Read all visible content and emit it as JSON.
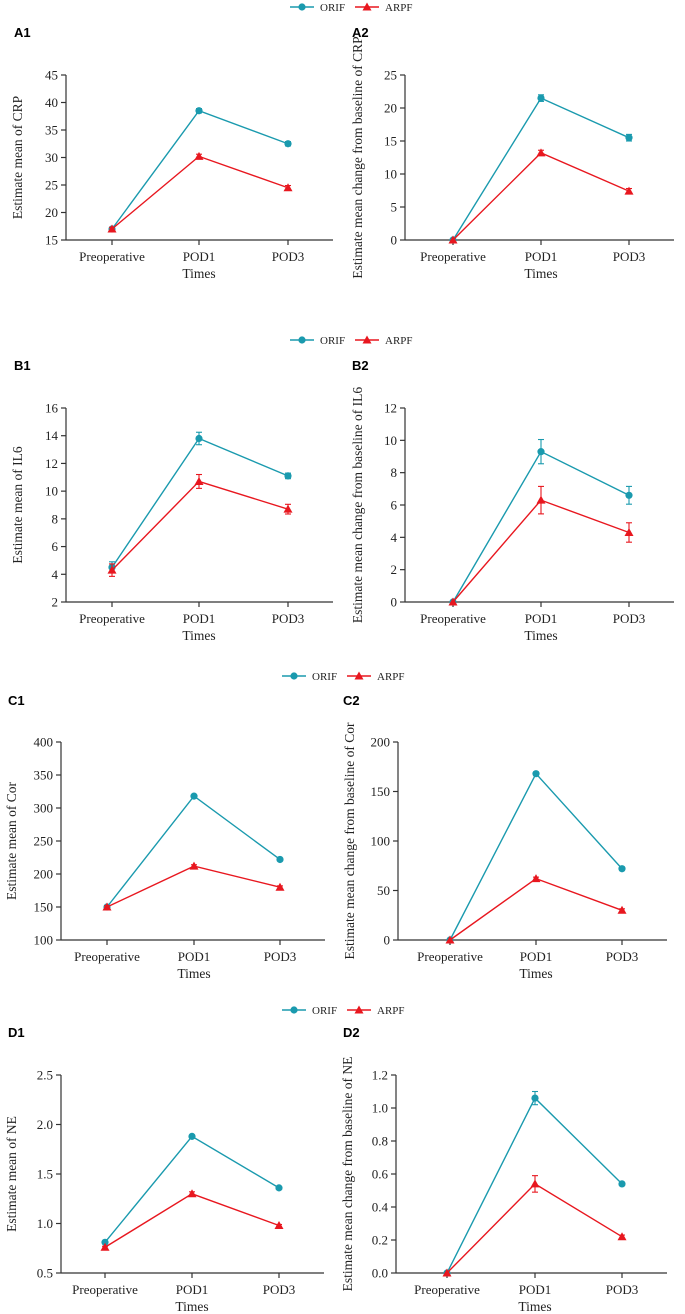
{
  "legend": {
    "series": [
      {
        "name": "ORIF",
        "color": "#1a9aae",
        "marker": "circle"
      },
      {
        "name": "ARPF",
        "color": "#e8171f",
        "marker": "triangle"
      }
    ]
  },
  "chart_data": [
    {
      "type": "line",
      "panel": "A1",
      "xlabel": "Times",
      "ylabel": "Estimate mean of CRP",
      "categories": [
        "Preoperative",
        "POD1",
        "POD3"
      ],
      "ylim": [
        15,
        45
      ],
      "yticks": [
        "15",
        "20",
        "25",
        "30",
        "35",
        "40",
        "45"
      ],
      "ytick_values": [
        15,
        20,
        25,
        30,
        35,
        40,
        45
      ],
      "series": [
        {
          "name": "ORIF",
          "values": [
            17.0,
            38.5,
            32.5
          ],
          "errors": [
            0.3,
            0.4,
            0.4
          ]
        },
        {
          "name": "ARPF",
          "values": [
            17.0,
            30.2,
            24.5
          ],
          "errors": [
            0.3,
            0.4,
            0.4
          ]
        }
      ]
    },
    {
      "type": "line",
      "panel": "A2",
      "xlabel": "Times",
      "ylabel": "Estimate mean change from baseline of CRP",
      "categories": [
        "Preoperative",
        "POD1",
        "POD3"
      ],
      "ylim": [
        0,
        25
      ],
      "yticks": [
        "0",
        "5",
        "10",
        "15",
        "20",
        "25"
      ],
      "ytick_values": [
        0,
        5,
        10,
        15,
        20,
        25
      ],
      "series": [
        {
          "name": "ORIF",
          "values": [
            0,
            21.5,
            15.5
          ],
          "errors": [
            0,
            0.5,
            0.5
          ]
        },
        {
          "name": "ARPF",
          "values": [
            0,
            13.2,
            7.4
          ],
          "errors": [
            0,
            0.4,
            0.4
          ]
        }
      ]
    },
    {
      "type": "line",
      "panel": "B1",
      "xlabel": "Times",
      "ylabel": "Estimate mean of IL6",
      "categories": [
        "Preoperative",
        "POD1",
        "POD3"
      ],
      "ylim": [
        2,
        16
      ],
      "yticks": [
        "2",
        "4",
        "6",
        "8",
        "10",
        "12",
        "14",
        "16"
      ],
      "ytick_values": [
        2,
        4,
        6,
        8,
        10,
        12,
        14,
        16
      ],
      "series": [
        {
          "name": "ORIF",
          "values": [
            4.5,
            13.8,
            11.1
          ],
          "errors": [
            0.4,
            0.45,
            0.2
          ]
        },
        {
          "name": "ARPF",
          "values": [
            4.3,
            10.7,
            8.7
          ],
          "errors": [
            0.45,
            0.5,
            0.35
          ]
        }
      ]
    },
    {
      "type": "line",
      "panel": "B2",
      "xlabel": "Times",
      "ylabel": "Estimate mean change from baseline of IL6",
      "categories": [
        "Preoperative",
        "POD1",
        "POD3"
      ],
      "ylim": [
        0,
        12
      ],
      "yticks": [
        "0",
        "2",
        "4",
        "6",
        "8",
        "10",
        "12"
      ],
      "ytick_values": [
        0,
        2,
        4,
        6,
        8,
        10,
        12
      ],
      "series": [
        {
          "name": "ORIF",
          "values": [
            0,
            9.3,
            6.6
          ],
          "errors": [
            0,
            0.75,
            0.55
          ]
        },
        {
          "name": "ARPF",
          "values": [
            0,
            6.3,
            4.3
          ],
          "errors": [
            0,
            0.85,
            0.6
          ]
        }
      ]
    },
    {
      "type": "line",
      "panel": "C1",
      "xlabel": "Times",
      "ylabel": "Estimate mean of Cor",
      "categories": [
        "Preoperative",
        "POD1",
        "POD3"
      ],
      "ylim": [
        100,
        400
      ],
      "yticks": [
        "100",
        "150",
        "200",
        "250",
        "300",
        "350",
        "400"
      ],
      "ytick_values": [
        100,
        150,
        200,
        250,
        300,
        350,
        400
      ],
      "series": [
        {
          "name": "ORIF",
          "values": [
            150,
            318,
            222
          ],
          "errors": [
            2,
            2,
            2
          ]
        },
        {
          "name": "ARPF",
          "values": [
            150,
            212,
            180
          ],
          "errors": [
            2,
            2,
            2
          ]
        }
      ]
    },
    {
      "type": "line",
      "panel": "C2",
      "xlabel": "Times",
      "ylabel": "Estimate mean change from baseline of Cor",
      "categories": [
        "Preoperative",
        "POD1",
        "POD3"
      ],
      "ylim": [
        0,
        200
      ],
      "yticks": [
        "0",
        "50",
        "100",
        "150",
        "200"
      ],
      "ytick_values": [
        0,
        50,
        100,
        150,
        200
      ],
      "series": [
        {
          "name": "ORIF",
          "values": [
            0,
            168,
            72
          ],
          "errors": [
            0,
            1.5,
            1.5
          ]
        },
        {
          "name": "ARPF",
          "values": [
            0,
            62,
            30
          ],
          "errors": [
            0,
            1.5,
            1.5
          ]
        }
      ]
    },
    {
      "type": "line",
      "panel": "D1",
      "xlabel": "Times",
      "ylabel": "Estimate mean of NE",
      "categories": [
        "Preoperative",
        "POD1",
        "POD3"
      ],
      "ylim": [
        0.5,
        2.5
      ],
      "yticks": [
        "0.5",
        "1.0",
        "1.5",
        "2.0",
        "2.5"
      ],
      "ytick_values": [
        0.5,
        1.0,
        1.5,
        2.0,
        2.5
      ],
      "series": [
        {
          "name": "ORIF",
          "values": [
            0.81,
            1.88,
            1.36
          ],
          "errors": [
            0.01,
            0.015,
            0.01
          ]
        },
        {
          "name": "ARPF",
          "values": [
            0.76,
            1.3,
            0.98
          ],
          "errors": [
            0.01,
            0.02,
            0.01
          ]
        }
      ]
    },
    {
      "type": "line",
      "panel": "D2",
      "xlabel": "Times",
      "ylabel": "Estimate mean change from baseline of NE",
      "categories": [
        "Preoperative",
        "POD1",
        "POD3"
      ],
      "ylim": [
        0.0,
        1.2
      ],
      "yticks": [
        "0.0",
        "0.2",
        "0.4",
        "0.6",
        "0.8",
        "1.0",
        "1.2"
      ],
      "ytick_values": [
        0,
        0.2,
        0.4,
        0.6,
        0.8,
        1.0,
        1.2
      ],
      "series": [
        {
          "name": "ORIF",
          "values": [
            0,
            1.06,
            0.54
          ],
          "errors": [
            0,
            0.04,
            0.01
          ]
        },
        {
          "name": "ARPF",
          "values": [
            0,
            0.54,
            0.22
          ],
          "errors": [
            0,
            0.05,
            0.01
          ]
        }
      ]
    }
  ]
}
